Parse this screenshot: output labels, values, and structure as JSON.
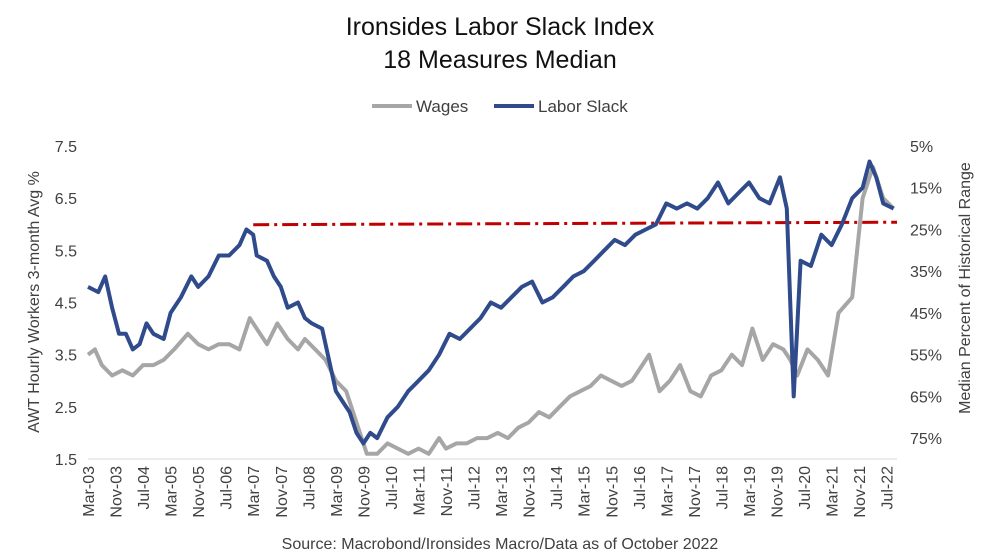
{
  "chart_data": {
    "type": "line",
    "title": "Ironsides Labor Slack Index",
    "subtitle": "18 Measures Median",
    "source": "Source: Macrobond/Ironsides Macro/Data as of October 2022",
    "ylabel_left": "AWT Hourly Workers 3-month Avg %",
    "ylabel_right": "Median Percent of Historical Range",
    "legend_position": "top-center",
    "grid": false,
    "x_ticks": [
      "Mar-03",
      "Nov-03",
      "Jul-04",
      "Mar-05",
      "Nov-05",
      "Jul-06",
      "Mar-07",
      "Nov-07",
      "Jul-08",
      "Mar-09",
      "Nov-09",
      "Jul-10",
      "Mar-11",
      "Nov-11",
      "Jul-12",
      "Mar-13",
      "Nov-13",
      "Jul-14",
      "Mar-15",
      "Nov-15",
      "Jul-16",
      "Mar-17",
      "Nov-17",
      "Jul-18",
      "Mar-19",
      "Nov-19",
      "Jul-20",
      "Mar-21",
      "Nov-21",
      "Jul-22"
    ],
    "y_left": {
      "ticks": [
        "1.5",
        "2.5",
        "3.5",
        "4.5",
        "5.5",
        "6.5",
        "7.5"
      ],
      "range": [
        1.5,
        7.5
      ]
    },
    "y_right": {
      "ticks": [
        "5%",
        "15%",
        "25%",
        "35%",
        "45%",
        "55%",
        "65%",
        "75%"
      ],
      "range": [
        5,
        80
      ],
      "inverted": true
    },
    "threshold": {
      "value_left": 6.02,
      "from": "Mar-07",
      "color": "#c00000",
      "style": "dash-dot"
    },
    "series": [
      {
        "name": "Wages",
        "axis": "left",
        "color": "#a6a6a6",
        "points": [
          [
            "2003-03",
            3.5
          ],
          [
            "2003-05",
            3.6
          ],
          [
            "2003-07",
            3.3
          ],
          [
            "2003-10",
            3.1
          ],
          [
            "2004-01",
            3.2
          ],
          [
            "2004-04",
            3.1
          ],
          [
            "2004-07",
            3.3
          ],
          [
            "2004-10",
            3.3
          ],
          [
            "2005-01",
            3.4
          ],
          [
            "2005-04",
            3.6
          ],
          [
            "2005-08",
            3.9
          ],
          [
            "2005-11",
            3.7
          ],
          [
            "2006-02",
            3.6
          ],
          [
            "2006-05",
            3.7
          ],
          [
            "2006-08",
            3.7
          ],
          [
            "2006-11",
            3.6
          ],
          [
            "2007-02",
            4.2
          ],
          [
            "2007-05",
            3.9
          ],
          [
            "2007-07",
            3.7
          ],
          [
            "2007-10",
            4.1
          ],
          [
            "2008-01",
            3.8
          ],
          [
            "2008-04",
            3.6
          ],
          [
            "2008-06",
            3.8
          ],
          [
            "2008-09",
            3.6
          ],
          [
            "2008-12",
            3.4
          ],
          [
            "2009-03",
            3.0
          ],
          [
            "2009-06",
            2.8
          ],
          [
            "2009-09",
            2.2
          ],
          [
            "2009-12",
            1.6
          ],
          [
            "2010-03",
            1.6
          ],
          [
            "2010-06",
            1.8
          ],
          [
            "2010-09",
            1.7
          ],
          [
            "2010-12",
            1.6
          ],
          [
            "2011-03",
            1.7
          ],
          [
            "2011-06",
            1.6
          ],
          [
            "2011-09",
            1.9
          ],
          [
            "2011-11",
            1.7
          ],
          [
            "2012-02",
            1.8
          ],
          [
            "2012-05",
            1.8
          ],
          [
            "2012-08",
            1.9
          ],
          [
            "2012-11",
            1.9
          ],
          [
            "2013-02",
            2.0
          ],
          [
            "2013-05",
            1.9
          ],
          [
            "2013-08",
            2.1
          ],
          [
            "2013-11",
            2.2
          ],
          [
            "2014-02",
            2.4
          ],
          [
            "2014-05",
            2.3
          ],
          [
            "2014-08",
            2.5
          ],
          [
            "2014-11",
            2.7
          ],
          [
            "2015-02",
            2.8
          ],
          [
            "2015-05",
            2.9
          ],
          [
            "2015-08",
            3.1
          ],
          [
            "2015-11",
            3.0
          ],
          [
            "2016-02",
            2.9
          ],
          [
            "2016-05",
            3.0
          ],
          [
            "2016-08",
            3.3
          ],
          [
            "2016-10",
            3.5
          ],
          [
            "2017-01",
            2.8
          ],
          [
            "2017-04",
            3.0
          ],
          [
            "2017-07",
            3.3
          ],
          [
            "2017-10",
            2.8
          ],
          [
            "2018-01",
            2.7
          ],
          [
            "2018-04",
            3.1
          ],
          [
            "2018-07",
            3.2
          ],
          [
            "2018-10",
            3.5
          ],
          [
            "2019-01",
            3.3
          ],
          [
            "2019-04",
            4.0
          ],
          [
            "2019-07",
            3.4
          ],
          [
            "2019-10",
            3.7
          ],
          [
            "2020-01",
            3.6
          ],
          [
            "2020-03",
            3.4
          ],
          [
            "2020-05",
            3.1
          ],
          [
            "2020-08",
            3.6
          ],
          [
            "2020-11",
            3.4
          ],
          [
            "2021-02",
            3.1
          ],
          [
            "2021-05",
            4.3
          ],
          [
            "2021-09",
            4.6
          ],
          [
            "2021-12",
            6.5
          ],
          [
            "2022-03",
            7.1
          ],
          [
            "2022-06",
            6.5
          ],
          [
            "2022-09",
            6.3
          ]
        ]
      },
      {
        "name": "Labor Slack",
        "axis": "left",
        "color": "#2f4b8c",
        "points": [
          [
            "2003-03",
            4.8
          ],
          [
            "2003-06",
            4.7
          ],
          [
            "2003-08",
            5.0
          ],
          [
            "2003-10",
            4.4
          ],
          [
            "2003-12",
            3.9
          ],
          [
            "2004-02",
            3.9
          ],
          [
            "2004-04",
            3.6
          ],
          [
            "2004-06",
            3.7
          ],
          [
            "2004-08",
            4.1
          ],
          [
            "2004-10",
            3.9
          ],
          [
            "2005-01",
            3.8
          ],
          [
            "2005-03",
            4.3
          ],
          [
            "2005-06",
            4.6
          ],
          [
            "2005-09",
            5.0
          ],
          [
            "2005-11",
            4.8
          ],
          [
            "2006-02",
            5.0
          ],
          [
            "2006-05",
            5.4
          ],
          [
            "2006-08",
            5.4
          ],
          [
            "2006-11",
            5.6
          ],
          [
            "2007-01",
            5.9
          ],
          [
            "2007-03",
            5.8
          ],
          [
            "2007-04",
            5.4
          ],
          [
            "2007-07",
            5.3
          ],
          [
            "2007-09",
            5.0
          ],
          [
            "2007-11",
            4.8
          ],
          [
            "2008-01",
            4.4
          ],
          [
            "2008-04",
            4.5
          ],
          [
            "2008-06",
            4.2
          ],
          [
            "2008-08",
            4.1
          ],
          [
            "2008-11",
            4.0
          ],
          [
            "2009-01",
            3.4
          ],
          [
            "2009-03",
            2.8
          ],
          [
            "2009-05",
            2.6
          ],
          [
            "2009-07",
            2.4
          ],
          [
            "2009-09",
            2.0
          ],
          [
            "2009-11",
            1.8
          ],
          [
            "2010-01",
            2.0
          ],
          [
            "2010-03",
            1.9
          ],
          [
            "2010-06",
            2.3
          ],
          [
            "2010-09",
            2.5
          ],
          [
            "2010-12",
            2.8
          ],
          [
            "2011-03",
            3.0
          ],
          [
            "2011-06",
            3.2
          ],
          [
            "2011-09",
            3.5
          ],
          [
            "2011-12",
            3.9
          ],
          [
            "2012-03",
            3.8
          ],
          [
            "2012-06",
            4.0
          ],
          [
            "2012-09",
            4.2
          ],
          [
            "2012-12",
            4.5
          ],
          [
            "2013-03",
            4.4
          ],
          [
            "2013-06",
            4.6
          ],
          [
            "2013-09",
            4.8
          ],
          [
            "2013-12",
            4.9
          ],
          [
            "2014-03",
            4.5
          ],
          [
            "2014-06",
            4.6
          ],
          [
            "2014-09",
            4.8
          ],
          [
            "2014-12",
            5.0
          ],
          [
            "2015-03",
            5.1
          ],
          [
            "2015-06",
            5.3
          ],
          [
            "2015-09",
            5.5
          ],
          [
            "2015-12",
            5.7
          ],
          [
            "2016-03",
            5.6
          ],
          [
            "2016-06",
            5.8
          ],
          [
            "2016-09",
            5.9
          ],
          [
            "2016-12",
            6.0
          ],
          [
            "2017-03",
            6.4
          ],
          [
            "2017-06",
            6.3
          ],
          [
            "2017-09",
            6.4
          ],
          [
            "2017-12",
            6.3
          ],
          [
            "2018-03",
            6.5
          ],
          [
            "2018-06",
            6.8
          ],
          [
            "2018-09",
            6.4
          ],
          [
            "2018-12",
            6.6
          ],
          [
            "2019-03",
            6.8
          ],
          [
            "2019-06",
            6.5
          ],
          [
            "2019-09",
            6.4
          ],
          [
            "2019-12",
            6.9
          ],
          [
            "2020-02",
            6.3
          ],
          [
            "2020-04",
            2.7
          ],
          [
            "2020-06",
            5.3
          ],
          [
            "2020-09",
            5.2
          ],
          [
            "2020-12",
            5.8
          ],
          [
            "2021-03",
            5.6
          ],
          [
            "2021-06",
            6.0
          ],
          [
            "2021-09",
            6.5
          ],
          [
            "2021-12",
            6.7
          ],
          [
            "2022-02",
            7.2
          ],
          [
            "2022-04",
            6.9
          ],
          [
            "2022-06",
            6.4
          ],
          [
            "2022-09",
            6.3
          ]
        ]
      }
    ]
  }
}
